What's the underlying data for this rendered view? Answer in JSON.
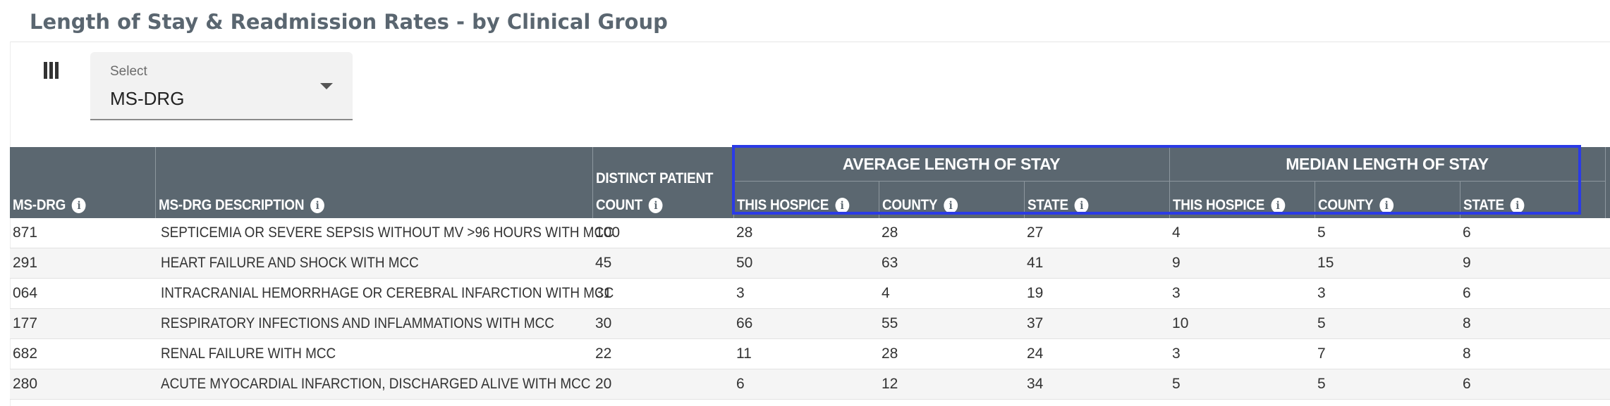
{
  "page": {
    "title": "Length of Stay & Readmission Rates - by Clinical Group"
  },
  "toolbar": {
    "columns_icon": "columns-icon",
    "select": {
      "label": "Select",
      "value": "MS-DRG"
    }
  },
  "table": {
    "group_headers": {
      "avg": "AVERAGE LENGTH OF STAY",
      "median": "MEDIAN LENGTH OF STAY"
    },
    "headers": {
      "msdrg": "MS-DRG",
      "desc": "MS-DRG DESCRIPTION",
      "count_line1": "DISTINCT PATIENT",
      "count_line2": "COUNT",
      "avg_hospice": "THIS HOSPICE",
      "avg_county": "COUNTY",
      "avg_state": "STATE",
      "med_hospice": "THIS HOSPICE",
      "med_county": "COUNTY",
      "med_state": "STATE"
    },
    "info_glyph": "i",
    "rows": [
      {
        "msdrg": "871",
        "desc": "SEPTICEMIA OR SEVERE SEPSIS WITHOUT MV >96 HOURS WITH MCC",
        "count": "100",
        "avg_hospice": "28",
        "avg_county": "28",
        "avg_state": "27",
        "med_hospice": "4",
        "med_county": "5",
        "med_state": "6"
      },
      {
        "msdrg": "291",
        "desc": "HEART FAILURE AND SHOCK WITH MCC",
        "count": "45",
        "avg_hospice": "50",
        "avg_county": "63",
        "avg_state": "41",
        "med_hospice": "9",
        "med_county": "15",
        "med_state": "9"
      },
      {
        "msdrg": "064",
        "desc": "INTRACRANIAL HEMORRHAGE OR CEREBRAL INFARCTION WITH MCC",
        "count": "31",
        "avg_hospice": "3",
        "avg_county": "4",
        "avg_state": "19",
        "med_hospice": "3",
        "med_county": "3",
        "med_state": "6"
      },
      {
        "msdrg": "177",
        "desc": "RESPIRATORY INFECTIONS AND INFLAMMATIONS WITH MCC",
        "count": "30",
        "avg_hospice": "66",
        "avg_county": "55",
        "avg_state": "37",
        "med_hospice": "10",
        "med_county": "5",
        "med_state": "8"
      },
      {
        "msdrg": "682",
        "desc": "RENAL FAILURE WITH MCC",
        "count": "22",
        "avg_hospice": "11",
        "avg_county": "28",
        "avg_state": "24",
        "med_hospice": "3",
        "med_county": "7",
        "med_state": "8"
      },
      {
        "msdrg": "280",
        "desc": "ACUTE MYOCARDIAL INFARCTION, DISCHARGED ALIVE WITH MCC",
        "count": "20",
        "avg_hospice": "6",
        "avg_county": "12",
        "avg_state": "34",
        "med_hospice": "5",
        "med_county": "5",
        "med_state": "6"
      }
    ]
  },
  "colors": {
    "header_bg": "#5b6770",
    "highlight_border": "#2b3be6",
    "stripe": "#f5f5f5"
  }
}
